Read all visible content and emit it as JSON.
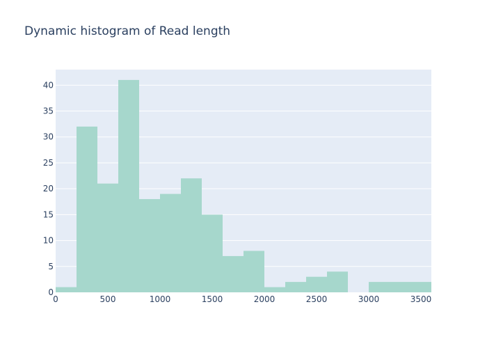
{
  "chart_data": {
    "type": "bar",
    "title": "Dynamic histogram of Read length",
    "xlabel": "",
    "ylabel": "",
    "bin_width": 200,
    "bins": [
      {
        "start": 0,
        "end": 200,
        "count": 1
      },
      {
        "start": 200,
        "end": 400,
        "count": 32
      },
      {
        "start": 400,
        "end": 600,
        "count": 21
      },
      {
        "start": 600,
        "end": 800,
        "count": 41
      },
      {
        "start": 800,
        "end": 1000,
        "count": 18
      },
      {
        "start": 1000,
        "end": 1200,
        "count": 19
      },
      {
        "start": 1200,
        "end": 1400,
        "count": 22
      },
      {
        "start": 1400,
        "end": 1600,
        "count": 15
      },
      {
        "start": 1600,
        "end": 1800,
        "count": 7
      },
      {
        "start": 1800,
        "end": 2000,
        "count": 8
      },
      {
        "start": 2000,
        "end": 2200,
        "count": 1
      },
      {
        "start": 2200,
        "end": 2400,
        "count": 2
      },
      {
        "start": 2400,
        "end": 2600,
        "count": 3
      },
      {
        "start": 2600,
        "end": 2800,
        "count": 4
      },
      {
        "start": 2800,
        "end": 3000,
        "count": 0
      },
      {
        "start": 3000,
        "end": 3200,
        "count": 2
      },
      {
        "start": 3200,
        "end": 3400,
        "count": 2
      },
      {
        "start": 3400,
        "end": 3600,
        "count": 2
      }
    ],
    "xlim": [
      0,
      3600
    ],
    "ylim": [
      0,
      43
    ],
    "xticks": [
      0,
      500,
      1000,
      1500,
      2000,
      2500,
      3000,
      3500
    ],
    "xtick_labels": [
      "0",
      "500",
      "1000",
      "1500",
      "2000",
      "2500",
      "3000",
      "3500"
    ],
    "yticks": [
      0,
      5,
      10,
      15,
      20,
      25,
      30,
      35,
      40
    ],
    "ytick_labels": [
      "0",
      "5",
      "10",
      "15",
      "20",
      "25",
      "30",
      "35",
      "40"
    ],
    "grid": true,
    "colors": {
      "bar": "#a6d7cc",
      "plot_background": "#e5ecf6",
      "grid": "#ffffff",
      "text": "#2a3f5f"
    }
  }
}
